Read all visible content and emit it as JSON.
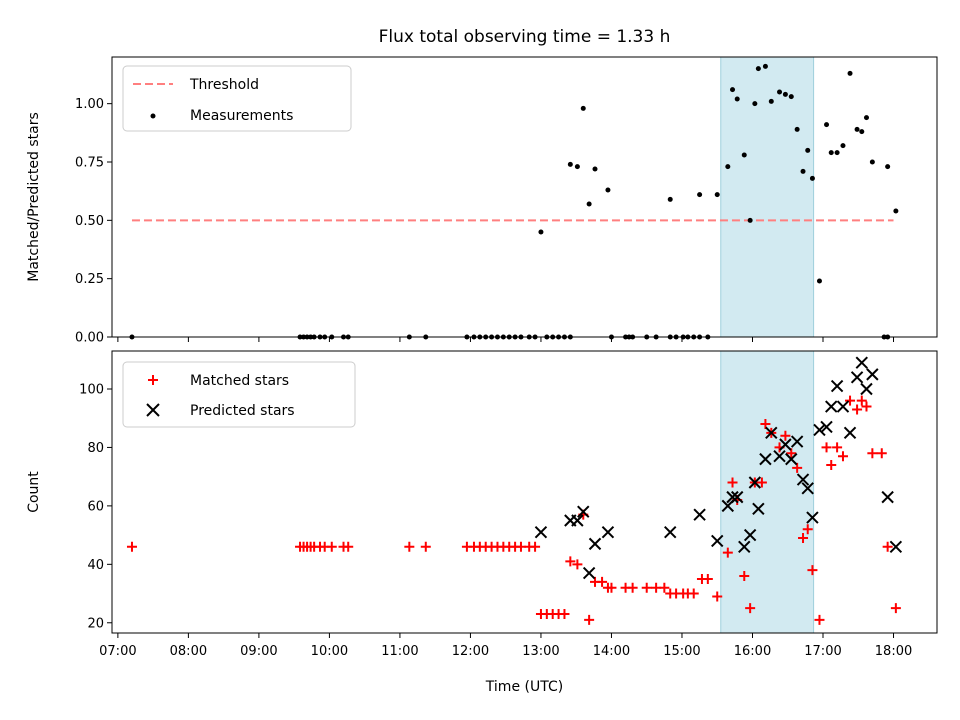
{
  "chart_data": [
    {
      "type": "scatter",
      "title": "Flux total observing time = 1.33 h",
      "ylabel": "Matched/Predicted stars",
      "xlabel": "",
      "ylim": [
        0,
        1.2
      ],
      "xlim": [
        "06:55",
        "18:37"
      ],
      "yticks": [
        "0.00",
        "0.25",
        "0.50",
        "0.75",
        "1.00"
      ],
      "shaded_span": [
        "15:33",
        "16:52"
      ],
      "legend_position": "top-left",
      "series": [
        {
          "name": "Threshold",
          "kind": "dashed-line",
          "color": "#ff7f7f",
          "x": [
            "07:12",
            "18:00"
          ],
          "y": [
            0.5,
            0.5
          ]
        },
        {
          "name": "Measurements",
          "kind": "points",
          "color": "#000000",
          "points": [
            [
              "07:12",
              0.0
            ],
            [
              "09:35",
              0.0
            ],
            [
              "09:38",
              0.0
            ],
            [
              "09:41",
              0.0
            ],
            [
              "09:44",
              0.0
            ],
            [
              "09:47",
              0.0
            ],
            [
              "09:52",
              0.0
            ],
            [
              "09:56",
              0.0
            ],
            [
              "10:02",
              0.0
            ],
            [
              "10:12",
              0.0
            ],
            [
              "10:16",
              0.0
            ],
            [
              "11:08",
              0.0
            ],
            [
              "11:22",
              0.0
            ],
            [
              "11:57",
              0.0
            ],
            [
              "12:03",
              0.0
            ],
            [
              "12:08",
              0.0
            ],
            [
              "12:13",
              0.0
            ],
            [
              "12:18",
              0.0
            ],
            [
              "12:23",
              0.0
            ],
            [
              "12:28",
              0.0
            ],
            [
              "12:33",
              0.0
            ],
            [
              "12:38",
              0.0
            ],
            [
              "12:43",
              0.0
            ],
            [
              "12:50",
              0.0
            ],
            [
              "12:55",
              0.0
            ],
            [
              "13:05",
              0.0
            ],
            [
              "13:10",
              0.0
            ],
            [
              "13:15",
              0.0
            ],
            [
              "13:20",
              0.0
            ],
            [
              "13:25",
              0.0
            ],
            [
              "14:00",
              0.0
            ],
            [
              "14:12",
              0.0
            ],
            [
              "14:15",
              0.0
            ],
            [
              "14:18",
              0.0
            ],
            [
              "14:30",
              0.0
            ],
            [
              "14:38",
              0.0
            ],
            [
              "14:50",
              0.0
            ],
            [
              "14:55",
              0.0
            ],
            [
              "15:01",
              0.0
            ],
            [
              "15:05",
              0.0
            ],
            [
              "15:10",
              0.0
            ],
            [
              "15:15",
              0.0
            ],
            [
              "15:22",
              0.0
            ],
            [
              "17:52",
              0.0
            ],
            [
              "17:55",
              0.0
            ],
            [
              "13:00",
              0.45
            ],
            [
              "13:25",
              0.74
            ],
            [
              "13:31",
              0.73
            ],
            [
              "13:36",
              0.98
            ],
            [
              "13:41",
              0.57
            ],
            [
              "13:46",
              0.72
            ],
            [
              "13:57",
              0.63
            ],
            [
              "14:50",
              0.59
            ],
            [
              "15:15",
              0.61
            ],
            [
              "15:30",
              0.61
            ],
            [
              "15:39",
              0.73
            ],
            [
              "15:43",
              1.06
            ],
            [
              "15:47",
              1.02
            ],
            [
              "15:53",
              0.78
            ],
            [
              "15:58",
              0.5
            ],
            [
              "16:02",
              1.0
            ],
            [
              "16:05",
              1.15
            ],
            [
              "16:11",
              1.16
            ],
            [
              "16:16",
              1.01
            ],
            [
              "16:23",
              1.05
            ],
            [
              "16:28",
              1.04
            ],
            [
              "16:33",
              1.03
            ],
            [
              "16:38",
              0.89
            ],
            [
              "16:43",
              0.71
            ],
            [
              "16:47",
              0.8
            ],
            [
              "16:51",
              0.68
            ],
            [
              "16:57",
              0.24
            ],
            [
              "17:03",
              0.91
            ],
            [
              "17:07",
              0.79
            ],
            [
              "17:12",
              0.79
            ],
            [
              "17:17",
              0.82
            ],
            [
              "17:23",
              1.13
            ],
            [
              "17:29",
              0.89
            ],
            [
              "17:33",
              0.88
            ],
            [
              "17:37",
              0.94
            ],
            [
              "17:42",
              0.75
            ],
            [
              "17:55",
              0.73
            ],
            [
              "18:02",
              0.54
            ]
          ]
        }
      ]
    },
    {
      "type": "scatter",
      "title": "",
      "ylabel": "Count",
      "xlabel": "Time (UTC)",
      "ylim": [
        16.5,
        113
      ],
      "xlim": [
        "06:55",
        "18:37"
      ],
      "yticks": [
        "20",
        "40",
        "60",
        "80",
        "100"
      ],
      "xticks": [
        "07:00",
        "08:00",
        "09:00",
        "10:00",
        "11:00",
        "12:00",
        "13:00",
        "14:00",
        "15:00",
        "16:00",
        "17:00",
        "18:00"
      ],
      "shaded_span": [
        "15:33",
        "16:52"
      ],
      "legend_position": "top-left",
      "series": [
        {
          "name": "Matched stars",
          "marker": "+",
          "color": "#ff0000",
          "points": [
            [
              "07:12",
              46
            ],
            [
              "09:35",
              46
            ],
            [
              "09:38",
              46
            ],
            [
              "09:41",
              46
            ],
            [
              "09:44",
              46
            ],
            [
              "09:47",
              46
            ],
            [
              "09:52",
              46
            ],
            [
              "09:56",
              46
            ],
            [
              "10:02",
              46
            ],
            [
              "10:12",
              46
            ],
            [
              "10:16",
              46
            ],
            [
              "11:08",
              46
            ],
            [
              "11:22",
              46
            ],
            [
              "11:57",
              46
            ],
            [
              "12:03",
              46
            ],
            [
              "12:08",
              46
            ],
            [
              "12:13",
              46
            ],
            [
              "12:18",
              46
            ],
            [
              "12:23",
              46
            ],
            [
              "12:28",
              46
            ],
            [
              "12:33",
              46
            ],
            [
              "12:38",
              46
            ],
            [
              "12:43",
              46
            ],
            [
              "12:50",
              46
            ],
            [
              "12:55",
              46
            ],
            [
              "13:00",
              23
            ],
            [
              "13:05",
              23
            ],
            [
              "13:10",
              23
            ],
            [
              "13:15",
              23
            ],
            [
              "13:20",
              23
            ],
            [
              "13:25",
              41
            ],
            [
              "13:31",
              40
            ],
            [
              "13:36",
              57
            ],
            [
              "13:41",
              21
            ],
            [
              "13:46",
              34
            ],
            [
              "13:52",
              34
            ],
            [
              "13:57",
              32
            ],
            [
              "14:00",
              32
            ],
            [
              "14:12",
              32
            ],
            [
              "14:18",
              32
            ],
            [
              "14:30",
              32
            ],
            [
              "14:38",
              32
            ],
            [
              "14:45",
              32
            ],
            [
              "14:50",
              30
            ],
            [
              "14:55",
              30
            ],
            [
              "15:01",
              30
            ],
            [
              "15:05",
              30
            ],
            [
              "15:10",
              30
            ],
            [
              "15:17",
              35
            ],
            [
              "15:22",
              35
            ],
            [
              "15:30",
              29
            ],
            [
              "15:39",
              44
            ],
            [
              "15:43",
              68
            ],
            [
              "15:47",
              62
            ],
            [
              "15:53",
              36
            ],
            [
              "15:58",
              25
            ],
            [
              "16:02",
              68
            ],
            [
              "16:08",
              68
            ],
            [
              "16:11",
              88
            ],
            [
              "16:16",
              85
            ],
            [
              "16:23",
              80
            ],
            [
              "16:28",
              84
            ],
            [
              "16:33",
              78
            ],
            [
              "16:38",
              73
            ],
            [
              "16:43",
              49
            ],
            [
              "16:47",
              52
            ],
            [
              "16:51",
              38
            ],
            [
              "16:57",
              21
            ],
            [
              "17:03",
              80
            ],
            [
              "17:07",
              74
            ],
            [
              "17:12",
              80
            ],
            [
              "17:17",
              77
            ],
            [
              "17:23",
              96
            ],
            [
              "17:29",
              93
            ],
            [
              "17:33",
              96
            ],
            [
              "17:37",
              94
            ],
            [
              "17:42",
              78
            ],
            [
              "17:50",
              78
            ],
            [
              "17:55",
              46
            ],
            [
              "18:02",
              25
            ]
          ]
        },
        {
          "name": "Predicted stars",
          "marker": "x",
          "color": "#000000",
          "points": [
            [
              "13:00",
              51
            ],
            [
              "13:25",
              55
            ],
            [
              "13:31",
              55
            ],
            [
              "13:36",
              58
            ],
            [
              "13:41",
              37
            ],
            [
              "13:46",
              47
            ],
            [
              "13:57",
              51
            ],
            [
              "14:50",
              51
            ],
            [
              "15:15",
              57
            ],
            [
              "15:30",
              48
            ],
            [
              "15:39",
              60
            ],
            [
              "15:43",
              63
            ],
            [
              "15:47",
              63
            ],
            [
              "15:53",
              46
            ],
            [
              "15:58",
              50
            ],
            [
              "16:02",
              68
            ],
            [
              "16:05",
              59
            ],
            [
              "16:11",
              76
            ],
            [
              "16:16",
              85
            ],
            [
              "16:23",
              77
            ],
            [
              "16:28",
              81
            ],
            [
              "16:33",
              76
            ],
            [
              "16:38",
              82
            ],
            [
              "16:43",
              69
            ],
            [
              "16:47",
              66
            ],
            [
              "16:51",
              56
            ],
            [
              "16:57",
              86
            ],
            [
              "17:03",
              87
            ],
            [
              "17:07",
              94
            ],
            [
              "17:12",
              101
            ],
            [
              "17:17",
              94
            ],
            [
              "17:23",
              85
            ],
            [
              "17:29",
              104
            ],
            [
              "17:33",
              109
            ],
            [
              "17:37",
              100
            ],
            [
              "17:42",
              105
            ],
            [
              "17:55",
              63
            ],
            [
              "18:02",
              46
            ]
          ]
        }
      ]
    }
  ]
}
